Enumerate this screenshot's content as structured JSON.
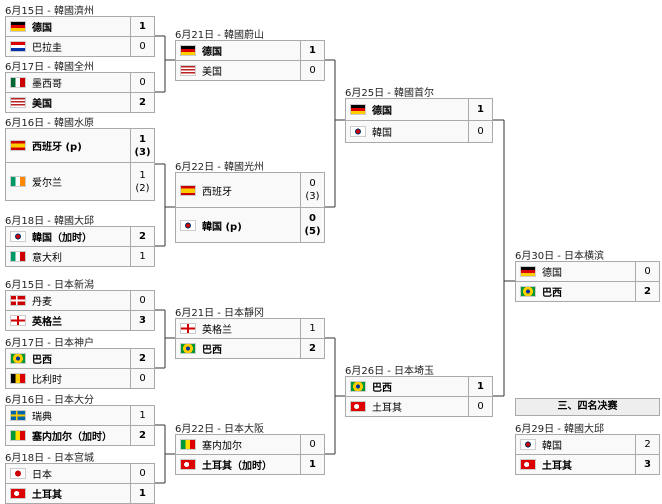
{
  "rounds": [
    {
      "matches": [
        {
          "header": "6月15日 - 韓國濟州",
          "winner": 0,
          "teams": [
            {
              "name": "德国",
              "score": "1"
            },
            {
              "name": "巴拉圭",
              "score": "0"
            }
          ]
        },
        {
          "header": "6月17日 - 韓國全州",
          "winner": 1,
          "teams": [
            {
              "name": "墨西哥",
              "score": "0"
            },
            {
              "name": "美国",
              "score": "2"
            }
          ]
        },
        {
          "header": "6月16日 - 韓國水原",
          "winner": 0,
          "teams": [
            {
              "name": "西班牙 (p)",
              "score": "1",
              "pen": "(3)"
            },
            {
              "name": "爱尔兰",
              "score": "1",
              "pen": "(2)"
            }
          ]
        },
        {
          "header": "6月18日 - 韓國大邱",
          "winner": 0,
          "teams": [
            {
              "name": "韓国（加时）",
              "score": "2"
            },
            {
              "name": "意大利",
              "score": "1"
            }
          ]
        },
        {
          "header": "6月15日 - 日本新潟",
          "winner": 1,
          "teams": [
            {
              "name": "丹麦",
              "score": "0"
            },
            {
              "name": "英格兰",
              "score": "3"
            }
          ]
        },
        {
          "header": "6月17日 - 日本神户",
          "winner": 0,
          "teams": [
            {
              "name": "巴西",
              "score": "2"
            },
            {
              "name": "比利时",
              "score": "0"
            }
          ]
        },
        {
          "header": "6月16日 - 日本大分",
          "winner": 1,
          "teams": [
            {
              "name": "瑞典",
              "score": "1"
            },
            {
              "name": "塞内加尔（加时）",
              "score": "2"
            }
          ]
        },
        {
          "header": "6月18日 - 日本宫城",
          "winner": 1,
          "teams": [
            {
              "name": "日本",
              "score": "0"
            },
            {
              "name": "土耳其",
              "score": "1"
            }
          ]
        }
      ]
    },
    {
      "matches": [
        {
          "header": "6月21日 - 韓國蔚山",
          "winner": 0,
          "teams": [
            {
              "name": "德国",
              "score": "1"
            },
            {
              "name": "美国",
              "score": "0"
            }
          ]
        },
        {
          "header": "6月22日 - 韓國光州",
          "winner": 1,
          "teams": [
            {
              "name": "西班牙",
              "score": "0",
              "pen": "(3)"
            },
            {
              "name": "韓国 (p)",
              "score": "0",
              "pen": "(5)"
            }
          ]
        },
        {
          "header": "6月21日 - 日本靜冈",
          "winner": 1,
          "teams": [
            {
              "name": "英格兰",
              "score": "1"
            },
            {
              "name": "巴西",
              "score": "2"
            }
          ]
        },
        {
          "header": "6月22日 - 日本大阪",
          "winner": 1,
          "teams": [
            {
              "name": "塞内加尔",
              "score": "0"
            },
            {
              "name": "土耳其（加时）",
              "score": "1"
            }
          ]
        }
      ]
    },
    {
      "matches": [
        {
          "header": "6月25日 - 韓國首尔",
          "winner": 0,
          "teams": [
            {
              "name": "德国",
              "score": "1"
            },
            {
              "name": "韓国",
              "score": "0"
            }
          ]
        },
        {
          "header": "6月26日 - 日本埼玉",
          "winner": 0,
          "teams": [
            {
              "name": "巴西",
              "score": "1"
            },
            {
              "name": "土耳其",
              "score": "0"
            }
          ]
        }
      ]
    },
    {
      "matches": [
        {
          "header": "6月30日 - 日本横滨",
          "winner": 1,
          "teams": [
            {
              "name": "德国",
              "score": "0"
            },
            {
              "name": "巴西",
              "score": "2"
            }
          ]
        }
      ]
    }
  ],
  "third_place": {
    "title": "三、四名决赛",
    "match": {
      "header": "6月29日 - 韓國大邱",
      "winner": 1,
      "teams": [
        {
          "name": "韓国",
          "score": "2"
        },
        {
          "name": "土耳其",
          "score": "3"
        }
      ]
    }
  }
}
